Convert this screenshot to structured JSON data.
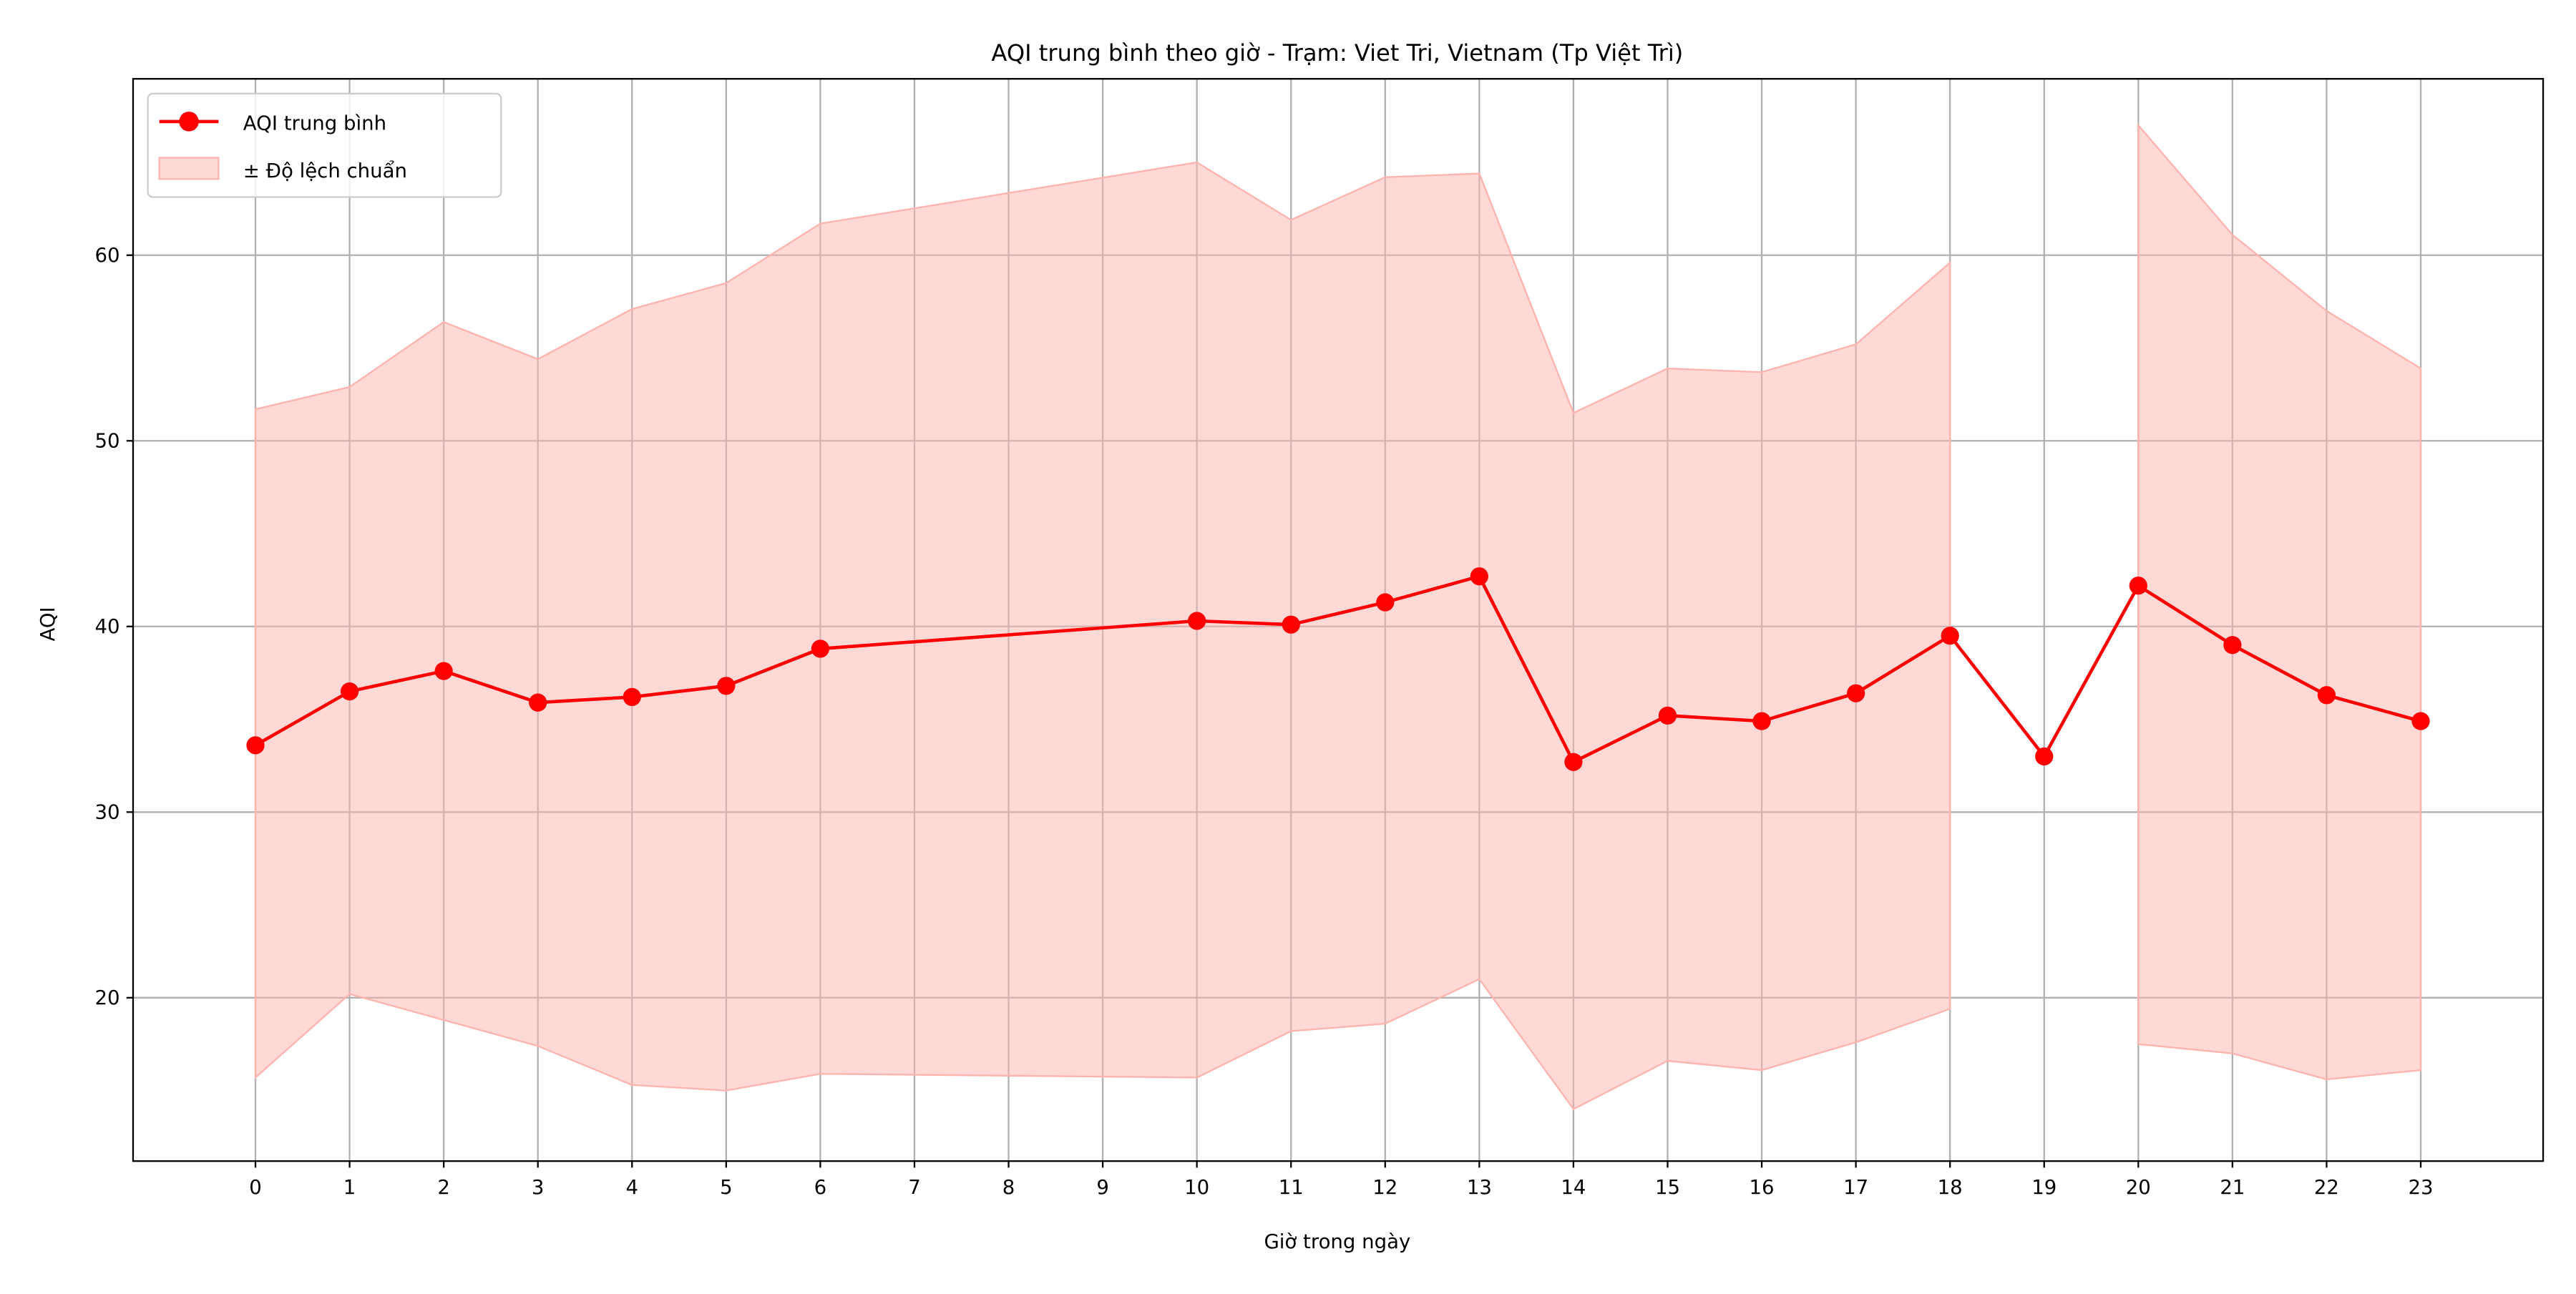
{
  "chart_data": {
    "type": "line",
    "title": "AQI trung bình theo giờ - Trạm: Viet Tri, Vietnam (Tp Việt Trì)",
    "xlabel": "Giờ trong ngày",
    "ylabel": "AQI",
    "xticks": [
      0,
      1,
      2,
      3,
      4,
      5,
      6,
      7,
      8,
      9,
      10,
      11,
      12,
      13,
      14,
      15,
      16,
      17,
      18,
      19,
      20,
      21,
      22,
      23
    ],
    "xlim": [
      -1.3,
      24.3
    ],
    "ylim": [
      11.2,
      69.5
    ],
    "yticks": [
      20,
      30,
      40,
      50,
      60
    ],
    "grid": true,
    "legend_position": "top-left",
    "colors": {
      "line": "#ff0000",
      "band_fill": "#ffb3ad",
      "band_edge": "#ffb3ad",
      "grid": "#b0b0b0"
    },
    "series": [
      {
        "name": "AQI trung bình",
        "kind": "line-markers",
        "x": [
          0,
          1,
          2,
          3,
          4,
          5,
          6,
          10,
          11,
          12,
          13,
          14,
          15,
          16,
          17,
          18,
          19,
          20,
          21,
          22,
          23
        ],
        "values": [
          33.6,
          36.5,
          37.6,
          35.9,
          36.2,
          36.8,
          38.8,
          40.3,
          40.1,
          41.3,
          42.7,
          32.7,
          35.2,
          34.9,
          36.4,
          39.5,
          33.0,
          42.2,
          39.0,
          36.3,
          34.9
        ]
      },
      {
        "name": "± Độ lệch chuẩn",
        "kind": "band",
        "x": [
          0,
          1,
          2,
          3,
          4,
          5,
          6,
          10,
          11,
          12,
          13,
          14,
          15,
          16,
          17,
          18,
          19,
          20,
          21,
          22,
          23
        ],
        "upper": [
          51.7,
          52.9,
          56.4,
          54.4,
          57.1,
          58.5,
          61.7,
          65.0,
          61.9,
          64.2,
          64.4,
          51.5,
          53.9,
          53.7,
          55.2,
          59.6,
          null,
          67.0,
          61.1,
          57.0,
          53.9
        ],
        "lower": [
          15.7,
          20.2,
          18.8,
          17.4,
          15.3,
          15.0,
          15.9,
          15.7,
          18.2,
          18.6,
          21.0,
          14.0,
          16.6,
          16.1,
          17.6,
          19.4,
          null,
          17.5,
          17.0,
          15.6,
          16.1
        ]
      }
    ]
  }
}
